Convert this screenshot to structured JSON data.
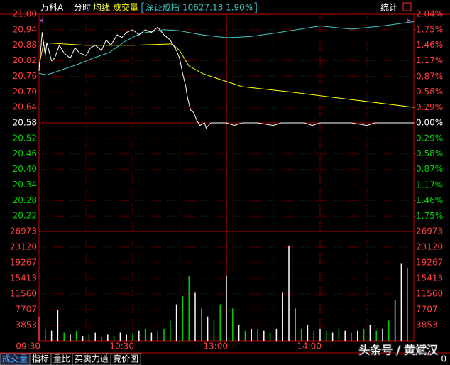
{
  "chart_data": {
    "type": "line",
    "title": "万科A",
    "xlim": [
      0,
      240
    ],
    "xticks": [
      {
        "value": 0,
        "label": "09:30"
      },
      {
        "value": 60,
        "label": "10:30"
      },
      {
        "value": 120,
        "label": "13:00"
      },
      {
        "value": 180,
        "label": "14:00"
      }
    ],
    "ylim": [
      20.16,
      21.0
    ],
    "yticks": [
      {
        "value": 21.0,
        "label": "21.00"
      },
      20.94,
      20.88,
      20.82,
      20.76,
      {
        "value": 20.7,
        "label": "20.70"
      },
      20.64,
      20.58,
      20.52,
      20.46,
      {
        "value": 20.4,
        "label": "20.40"
      },
      20.34,
      20.28,
      20.22
    ],
    "y2lim": [
      -2.04,
      2.04
    ],
    "y2ticks": [
      {
        "value": 2.04,
        "label": "2.04%"
      },
      {
        "value": 1.75,
        "label": "1.75%"
      },
      {
        "value": 1.46,
        "label": "1.46%"
      },
      {
        "value": 1.17,
        "label": "1.17%"
      },
      {
        "value": 0.87,
        "label": "0.87%"
      },
      {
        "value": 0.58,
        "label": "0.58%"
      },
      {
        "value": 0.29,
        "label": "0.29%"
      },
      {
        "value": 0,
        "label": "0.00%"
      },
      {
        "value": -0.29,
        "label": "0.29%"
      },
      {
        "value": -0.58,
        "label": "0.58%"
      },
      {
        "value": -0.87,
        "label": "0.87%"
      },
      {
        "value": -1.17,
        "label": "1.17%"
      },
      {
        "value": -1.46,
        "label": "1.46%"
      },
      {
        "value": -1.75,
        "label": "1.75%"
      }
    ],
    "grid": true,
    "series": [
      {
        "name": "分时",
        "color": "#ffffff",
        "x": [
          0,
          2,
          4,
          5,
          8,
          10,
          13,
          16,
          20,
          23,
          26,
          30,
          33,
          36,
          40,
          43,
          46,
          50,
          53,
          56,
          60,
          64,
          68,
          72,
          76,
          80,
          84,
          88,
          90,
          92,
          94,
          95,
          97,
          99,
          101,
          103,
          106,
          107,
          110,
          120,
          125,
          130,
          140,
          150,
          155,
          170,
          175,
          180,
          200,
          210,
          215,
          240
        ],
        "values": [
          20.78,
          20.93,
          20.84,
          20.89,
          20.82,
          20.83,
          20.88,
          20.85,
          20.83,
          20.87,
          20.85,
          20.84,
          20.87,
          20.88,
          20.86,
          20.9,
          20.88,
          20.92,
          20.91,
          20.93,
          20.94,
          20.92,
          20.94,
          20.93,
          20.95,
          20.92,
          20.9,
          20.86,
          20.83,
          20.77,
          20.72,
          20.68,
          20.63,
          20.62,
          20.59,
          20.57,
          20.58,
          20.56,
          20.58,
          20.58,
          20.57,
          20.58,
          20.58,
          20.57,
          20.58,
          20.58,
          20.57,
          20.58,
          20.58,
          20.57,
          20.58,
          20.58
        ]
      },
      {
        "name": "均线",
        "color": "#ffff00",
        "x": [
          0,
          3,
          30,
          60,
          85,
          90,
          96,
          105,
          115,
          130,
          160,
          200,
          240
        ],
        "values": [
          20.8,
          20.89,
          20.88,
          20.88,
          20.885,
          20.86,
          20.8,
          20.77,
          20.75,
          20.72,
          20.7,
          20.67,
          20.64
        ]
      },
      {
        "name": "深证成指",
        "quote": "10627.13 1.90%",
        "color": "#3fc8c8",
        "axis": "y2",
        "x": [
          0,
          5,
          15,
          25,
          35,
          45,
          55,
          65,
          80,
          90,
          105,
          120,
          135,
          150,
          165,
          180,
          200,
          220,
          240
        ],
        "values": [
          0.93,
          0.9,
          1.0,
          1.1,
          1.22,
          1.32,
          1.53,
          1.68,
          1.75,
          1.73,
          1.65,
          1.6,
          1.62,
          1.68,
          1.75,
          1.82,
          1.76,
          1.82,
          1.9
        ]
      }
    ],
    "volume": {
      "type": "bar",
      "name": "成交量",
      "ylim": [
        0,
        26973
      ],
      "yticks": [
        26973,
        23120,
        19267,
        15413,
        11560,
        7707,
        3853
      ],
      "x": [
        0,
        4,
        8,
        12,
        16,
        20,
        24,
        28,
        32,
        36,
        40,
        44,
        48,
        52,
        56,
        60,
        64,
        68,
        72,
        76,
        80,
        84,
        88,
        92,
        96,
        100,
        104,
        108,
        112,
        116,
        120,
        124,
        128,
        132,
        136,
        140,
        144,
        148,
        152,
        156,
        160,
        164,
        168,
        172,
        176,
        180,
        184,
        188,
        192,
        196,
        200,
        204,
        208,
        212,
        216,
        220,
        224,
        228,
        232,
        236
      ],
      "values": [
        6000,
        3000,
        2500,
        7700,
        2000,
        1500,
        2500,
        1200,
        1500,
        2000,
        1000,
        1500,
        1200,
        2000,
        1500,
        1800,
        2500,
        3000,
        2000,
        2500,
        3000,
        5000,
        9000,
        11000,
        16000,
        12000,
        8000,
        6000,
        5000,
        9000,
        16000,
        8000,
        4000,
        2500,
        3000,
        3000,
        2500,
        2000,
        3000,
        12000,
        23500,
        8000,
        3000,
        4000,
        2500,
        3000,
        2500,
        2000,
        3000,
        2500,
        2000,
        2500,
        3000,
        4000,
        2500,
        3000,
        5000,
        10000,
        19000,
        18000
      ],
      "colors": [
        "#ff3c3c",
        "#00d000",
        "#ffffff",
        "#ffffff",
        "#00d000",
        "#ffffff",
        "#00d000",
        "#ffffff",
        "#00d000",
        "#ffffff",
        "#00d000",
        "#ffffff",
        "#00d000",
        "#ffffff",
        "#ffffff",
        "#00d000",
        "#ffffff",
        "#00d000",
        "#ffffff",
        "#00d000",
        "#00d000",
        "#00d000",
        "#ffffff",
        "#00d000",
        "#00d000",
        "#ffffff",
        "#00d000",
        "#ffffff",
        "#00d000",
        "#00d000",
        "#ffffff",
        "#00d000",
        "#ffffff",
        "#00d000",
        "#ffffff",
        "#00d000",
        "#ffffff",
        "#00d000",
        "#ffffff",
        "#ffffff",
        "#ffffff",
        "#ffffff",
        "#00d000",
        "#ffffff",
        "#00d000",
        "#ffffff",
        "#00d000",
        "#ffffff",
        "#00d000",
        "#ffffff",
        "#00d000",
        "#ffffff",
        "#00d000",
        "#ffffff",
        "#00d000",
        "#ffffff",
        "#00d000",
        "#ffffff",
        "#ffffff",
        "#ff3c3c"
      ]
    },
    "stat": "统计",
    "tabs": [
      "成交量",
      "指标",
      "量比",
      "买卖力道",
      "竞价图"
    ],
    "corner": "0",
    "watermark": "头条号 / 黄斌汉"
  }
}
